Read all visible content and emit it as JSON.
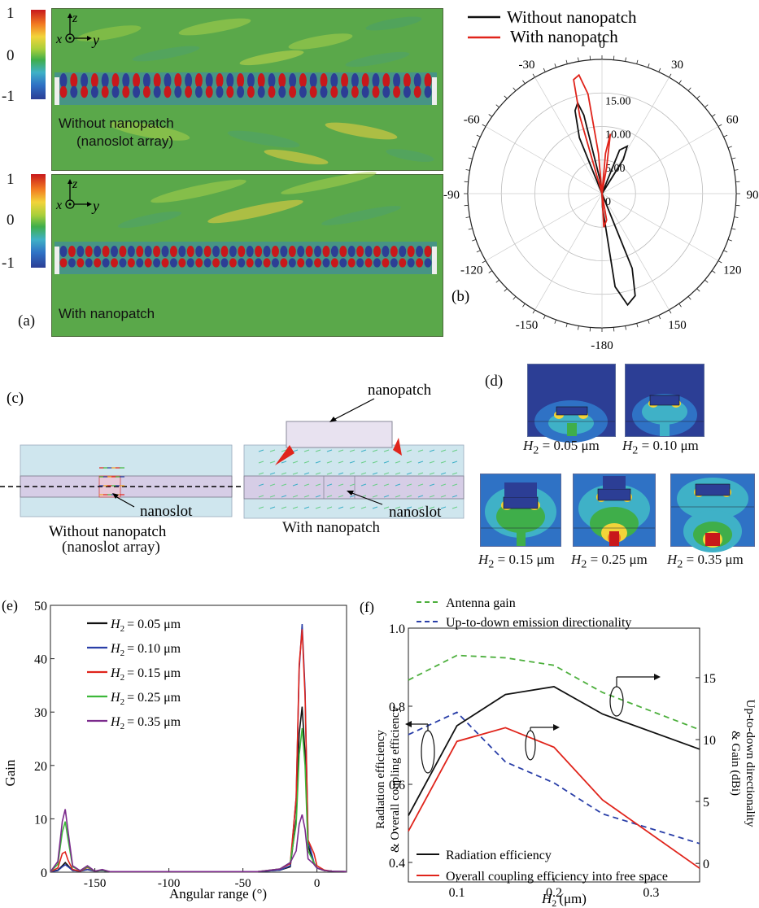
{
  "panel_a": {
    "label": "(a)",
    "top": {
      "caption_line1": "Without nanopatch",
      "caption_line2": "(nanoslot array)"
    },
    "bottom": {
      "caption": "With nanopatch"
    },
    "colorbar_ticks": [
      "1",
      "0",
      "-1"
    ],
    "axes": {
      "x": "x",
      "y": "y",
      "z": "z"
    }
  },
  "panel_b": {
    "label": "(b)",
    "legend": [
      "Without nanopatch",
      "With nanopatch"
    ],
    "angle_labels": [
      "0",
      "30",
      "60",
      "90",
      "120",
      "150",
      "-180",
      "-150",
      "-120",
      "-90",
      "-60",
      "-30"
    ],
    "radial_labels": [
      "15.00",
      "10.00",
      "5.00",
      "0"
    ],
    "colors": {
      "without": "#111111",
      "with": "#e0241b"
    },
    "radial_max": 20
  },
  "panel_c": {
    "label": "(c)",
    "left_caption_line1": "Without nanopatch",
    "left_caption_line2": "(nanoslot array)",
    "right_caption": "With nanopatch",
    "nanoslot_label": "nanoslot",
    "nanopatch_label": "nanopatch"
  },
  "panel_d": {
    "label": "(d)",
    "captions": [
      "= 0.05 μm",
      "= 0.10 μm",
      "= 0.15 μm",
      "= 0.25 μm",
      "= 0.35 μm"
    ],
    "var_symbol": "H",
    "var_sub": "2"
  },
  "chart_data": [
    {
      "id": "e",
      "type": "line",
      "label": "(e)",
      "xlabel": "Angular range (°)",
      "ylabel": "Gain",
      "xlim": [
        -180,
        20
      ],
      "ylim": [
        0,
        50
      ],
      "xticks": [
        -150,
        -100,
        -50,
        0
      ],
      "yticks": [
        0,
        10,
        20,
        30,
        40,
        50
      ],
      "x": [
        -180,
        -175,
        -172,
        -170,
        -168,
        -165,
        -160,
        -155,
        -150,
        -145,
        -140,
        -130,
        -120,
        -100,
        -80,
        -60,
        -40,
        -25,
        -18,
        -14,
        -12,
        -10,
        -8,
        -6,
        -2,
        0,
        5,
        10,
        20
      ],
      "series": [
        {
          "name": "= 0.05 μm",
          "label_value": "0.05",
          "color": "#111111",
          "values": [
            0.1,
            0.4,
            1.2,
            1.8,
            1.2,
            0.3,
            0.2,
            0.5,
            0.2,
            0.3,
            0.1,
            0.1,
            0.1,
            0.1,
            0.1,
            0.1,
            0.1,
            0.4,
            1.0,
            10,
            26,
            31,
            22,
            5,
            1.5,
            0.8,
            0.3,
            0.2,
            0.1
          ]
        },
        {
          "name": "= 0.10 μm",
          "label_value": "0.10",
          "color": "#2a3fa8",
          "values": [
            0.1,
            0.3,
            1.0,
            1.4,
            1.0,
            0.3,
            0.2,
            0.5,
            0.2,
            0.3,
            0.1,
            0.1,
            0.1,
            0.1,
            0.1,
            0.1,
            0.1,
            0.4,
            1.2,
            14,
            38,
            46.5,
            34,
            6,
            1.8,
            0.8,
            0.3,
            0.2,
            0.1
          ]
        },
        {
          "name": "= 0.15 μm",
          "label_value": "0.15",
          "color": "#e0241b",
          "values": [
            0.1,
            0.8,
            3.5,
            3.8,
            2.2,
            0.5,
            0.2,
            0.9,
            0.2,
            0.4,
            0.1,
            0.1,
            0.1,
            0.1,
            0.1,
            0.1,
            0.1,
            0.6,
            1.6,
            14,
            39,
            45.5,
            33,
            6,
            3.5,
            1.2,
            0.4,
            0.2,
            0.1
          ]
        },
        {
          "name": "= 0.25 μm",
          "label_value": "0.25",
          "color": "#3db83a",
          "values": [
            0.1,
            1.5,
            7.5,
            9.5,
            6.0,
            1.0,
            0.3,
            1.0,
            0.2,
            0.4,
            0.1,
            0.1,
            0.1,
            0.1,
            0.1,
            0.1,
            0.1,
            0.6,
            1.8,
            9,
            22,
            27,
            20,
            4,
            1.8,
            0.8,
            0.3,
            0.2,
            0.1
          ]
        },
        {
          "name": "= 0.35 μm",
          "label_value": "0.35",
          "color": "#7b2a8c",
          "values": [
            0.1,
            2.0,
            9.5,
            11.8,
            7.5,
            1.2,
            0.3,
            1.2,
            0.2,
            0.5,
            0.1,
            0.1,
            0.1,
            0.1,
            0.1,
            0.1,
            0.1,
            0.6,
            1.8,
            4,
            9,
            10.8,
            8,
            2.5,
            1.5,
            0.8,
            0.3,
            0.2,
            0.1
          ]
        }
      ],
      "legend_prefix": "H",
      "legend_sub": "2",
      "legend_placement": "top-left"
    },
    {
      "id": "f",
      "type": "line",
      "label": "(f)",
      "xlabel_symbol": "H",
      "xlabel_sub": "2",
      "xlabel_unit": "(μm)",
      "ylabel_left_line1": "Radiation efficiency",
      "ylabel_left_line2": "& Overall coupling efficiency",
      "ylabel_right_line1": "Up-to-down directionality",
      "ylabel_right_line2": "& Gain (dBi)",
      "xlim": [
        0.05,
        0.35
      ],
      "ylim_left": [
        0.35,
        1.0
      ],
      "ylim_right": [
        -1.5,
        19
      ],
      "xticks": [
        0.1,
        0.2,
        0.3
      ],
      "yticks_left": [
        0.4,
        0.6,
        0.8,
        1.0
      ],
      "yticks_right": [
        0,
        5,
        10,
        15
      ],
      "x": [
        0.05,
        0.1,
        0.15,
        0.2,
        0.25,
        0.35
      ],
      "series": [
        {
          "name": "Antenna gain",
          "axis": "right",
          "style": "dashed",
          "color": "#4caf3c",
          "values": [
            14.8,
            16.8,
            16.6,
            16.0,
            13.8,
            10.8
          ]
        },
        {
          "name": "Up-to-down emission directionality",
          "axis": "right",
          "style": "dashed",
          "color": "#2a3fa8",
          "values": [
            10.4,
            12.2,
            8.2,
            6.5,
            4.0,
            1.6
          ]
        },
        {
          "name": "Radiation efficiency",
          "axis": "left",
          "style": "solid",
          "color": "#111111",
          "values": [
            0.52,
            0.75,
            0.83,
            0.85,
            0.78,
            0.69
          ]
        },
        {
          "name": "Overall coupling efficiency into free space",
          "axis": "left",
          "style": "solid",
          "color": "#e0241b",
          "values": [
            0.48,
            0.71,
            0.745,
            0.695,
            0.56,
            0.385
          ]
        }
      ],
      "grid": false
    }
  ]
}
